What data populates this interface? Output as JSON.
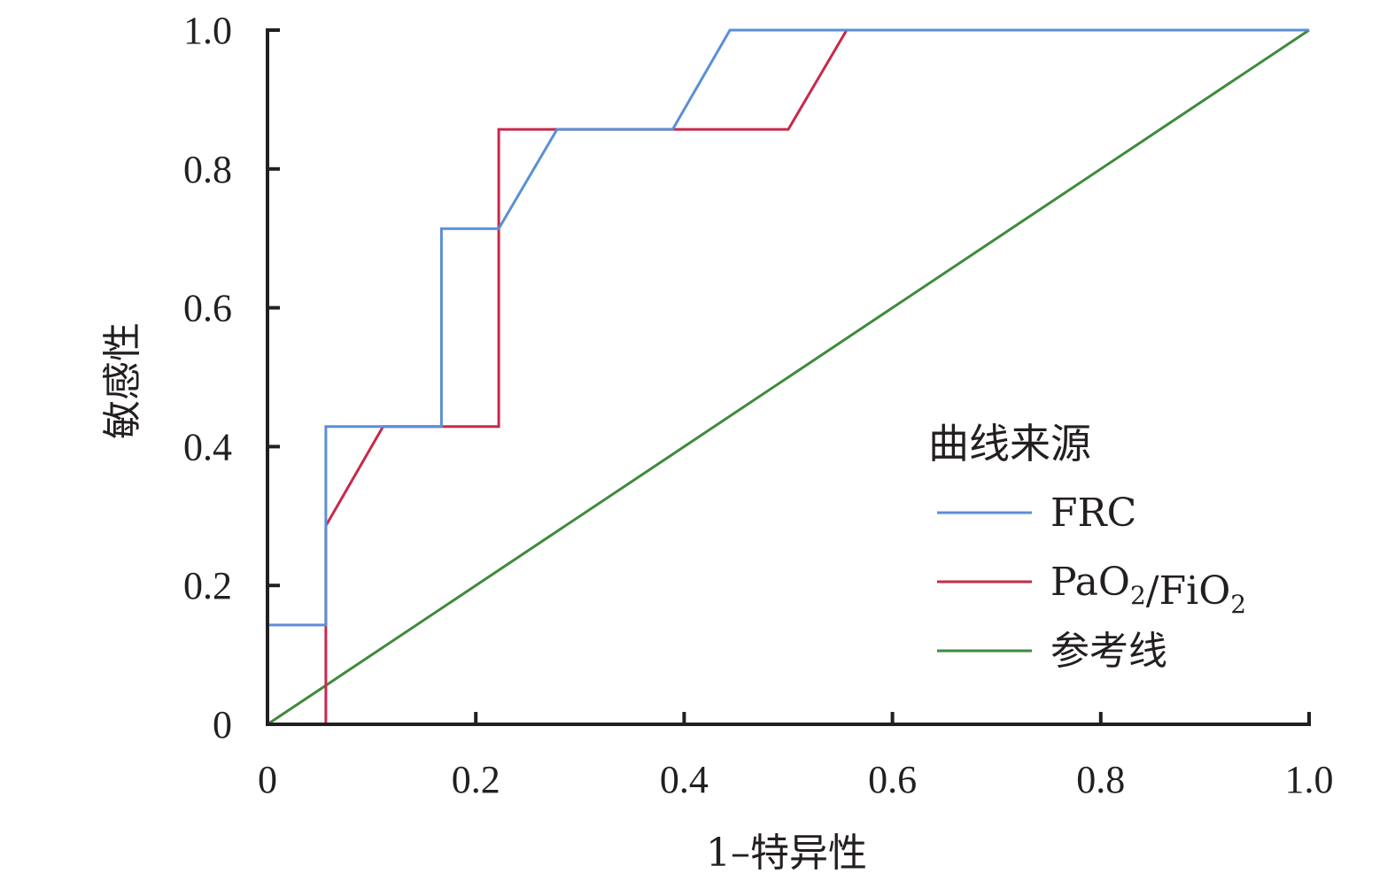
{
  "chart_data": {
    "type": "line",
    "xlabel": "1–特异性",
    "ylabel": "敏感性",
    "xlim": [
      0,
      1.0
    ],
    "ylim": [
      0,
      1.0
    ],
    "x_ticks": [
      "0",
      "0.2",
      "0.4",
      "0.6",
      "0.8",
      "1.0"
    ],
    "y_ticks": [
      "0",
      "0.2",
      "0.4",
      "0.6",
      "0.8",
      "1.0"
    ],
    "grid": false,
    "legend": {
      "title": "曲线来源",
      "placement": "right",
      "entries": [
        {
          "parts": [
            {
              "text": "FRC"
            }
          ]
        },
        {
          "parts": [
            {
              "text": "PaO"
            },
            {
              "text": "2",
              "sub": true
            },
            {
              "text": "/FiO"
            },
            {
              "text": "2",
              "sub": true
            }
          ]
        },
        {
          "parts": [
            {
              "text": "参考线"
            }
          ]
        }
      ]
    },
    "series": [
      {
        "name": "FRC",
        "color": "#5b8fd6",
        "x": [
          0,
          0,
          0.056,
          0.056,
          0.056,
          0.167,
          0.167,
          0.222,
          0.278,
          0.389,
          0.444,
          0.556,
          1.0
        ],
        "y": [
          0,
          0.143,
          0.143,
          0.286,
          0.429,
          0.429,
          0.714,
          0.714,
          0.857,
          0.857,
          1.0,
          1.0,
          1.0
        ]
      },
      {
        "name": "PaO2/FiO2",
        "color": "#c8284a",
        "x": [
          0,
          0.056,
          0.056,
          0.111,
          0.222,
          0.222,
          0.5,
          0.556,
          1.0
        ],
        "y": [
          0,
          0,
          0.286,
          0.429,
          0.429,
          0.857,
          0.857,
          1.0,
          1.0
        ]
      },
      {
        "name": "参考线",
        "color": "#3d8a3d",
        "x": [
          0,
          1.0
        ],
        "y": [
          0,
          1.0
        ]
      }
    ]
  }
}
